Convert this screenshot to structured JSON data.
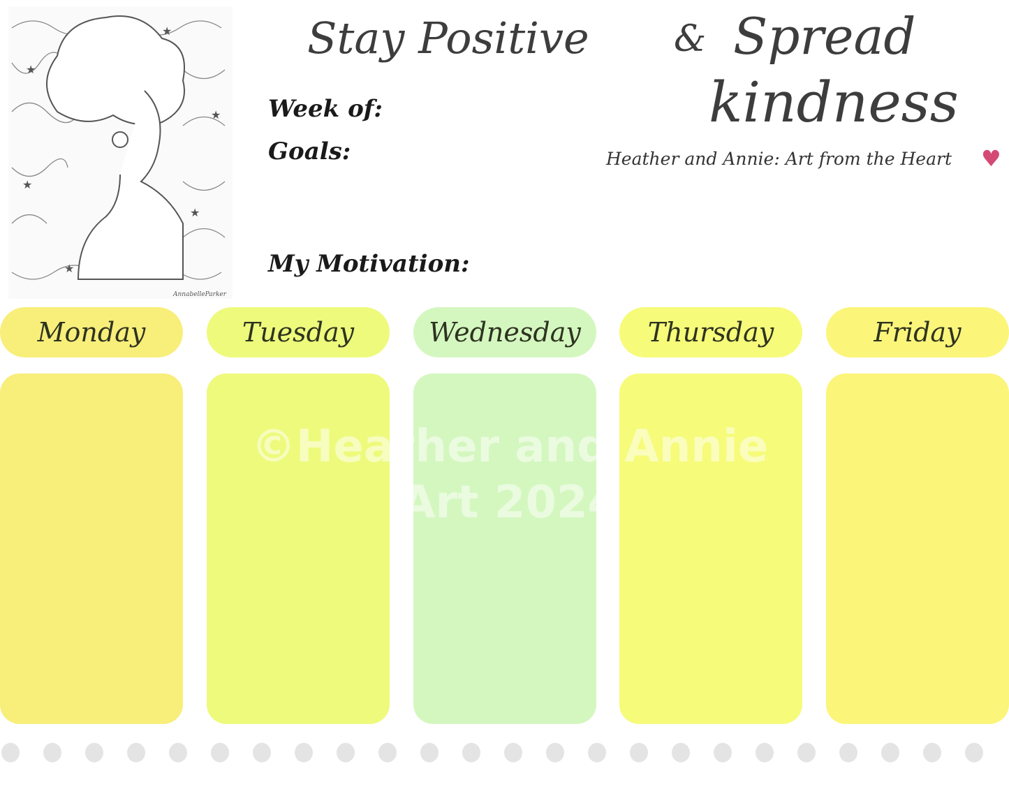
{
  "header": {
    "title_part1": "Stay Positive",
    "ampersand": "&",
    "title_part2_line1": "Spread",
    "title_part2_line2": "kindness",
    "credit": "Heather and Annie: Art from the Heart",
    "heart_icon": "heart-icon",
    "heart_color": "#d44a75"
  },
  "illustration": {
    "signature": "AnnabelleParker"
  },
  "fields": {
    "week_of": "Week of:",
    "goals": "Goals:",
    "motivation": "My Motivation:"
  },
  "days": [
    {
      "label": "Monday",
      "color": "#f8ee7a"
    },
    {
      "label": "Tuesday",
      "color": "#eefa7c"
    },
    {
      "label": "Wednesday",
      "color": "#d4f7c0"
    },
    {
      "label": "Thursday",
      "color": "#f6fb7a"
    },
    {
      "label": "Friday",
      "color": "#fbf57a"
    }
  ],
  "watermark": {
    "line1": "©Heather and Annie",
    "line2": "Art 2024"
  },
  "footer": {
    "dot_color": "#e4e4e4"
  }
}
